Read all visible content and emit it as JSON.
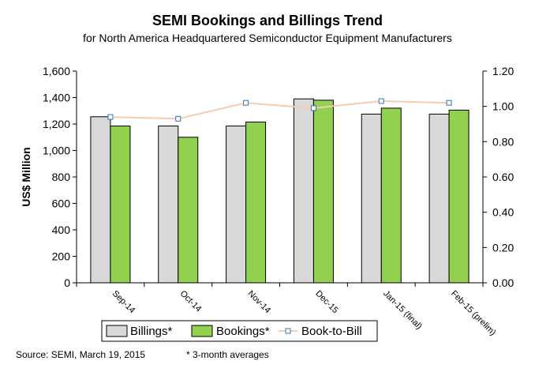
{
  "chart_data": {
    "type": "bar",
    "title": "SEMI Bookings and Billings  Trend",
    "subtitle": "for North America Headquartered Semiconductor Equipment Manufacturers",
    "ylabel": "US$ Million",
    "ylim": [
      0,
      1600
    ],
    "y_ticks": [
      "0",
      "200",
      "400",
      "600",
      "800",
      "1,000",
      "1,200",
      "1,400",
      "1,600"
    ],
    "y2lim": [
      0,
      1.2
    ],
    "y2_ticks": [
      "0.00",
      "0.20",
      "0.40",
      "0.60",
      "0.80",
      "1.00",
      "1.20"
    ],
    "categories": [
      "Sep-14",
      "Oct-14",
      "Nov-14",
      "Dec-15",
      "Jan-15 (final)",
      "Feb-15 (prelim)"
    ],
    "series": [
      {
        "name": "Billings*",
        "type": "bar",
        "axis": "left",
        "color": "#d9d9d9",
        "values": [
          1255,
          1185,
          1185,
          1390,
          1275,
          1275
        ]
      },
      {
        "name": "Bookings*",
        "type": "bar",
        "axis": "left",
        "color": "#92d050",
        "values": [
          1185,
          1100,
          1215,
          1380,
          1320,
          1305
        ]
      },
      {
        "name": "Book-to-Bill",
        "type": "line",
        "axis": "right",
        "color": "#f8cbad",
        "values": [
          0.94,
          0.93,
          1.02,
          0.99,
          1.03,
          1.02
        ]
      }
    ],
    "legend_position": "bottom",
    "grid": false
  },
  "footer": {
    "source": "Source: SEMI, March 19, 2015",
    "note": "* 3-month averages"
  }
}
